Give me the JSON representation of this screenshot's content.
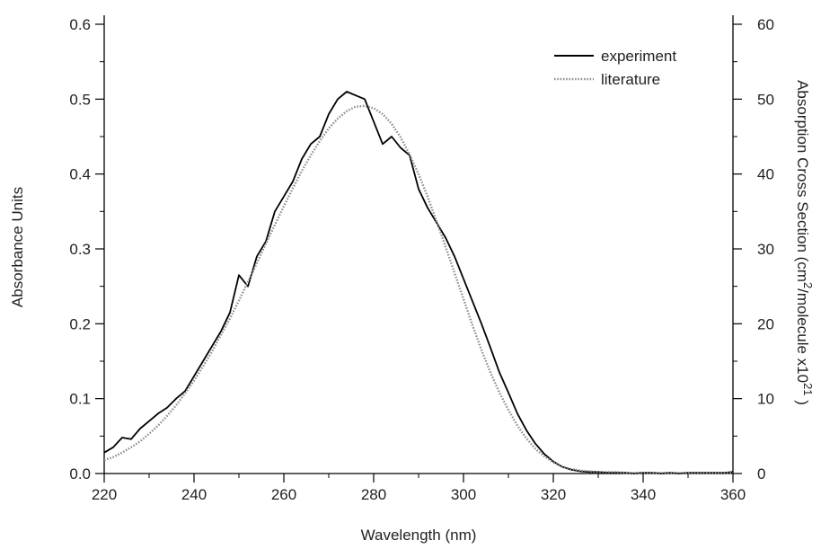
{
  "chart_data": {
    "type": "line",
    "title": "",
    "xlabel": "Wavelength (nm)",
    "ylabel_left": "Absorbance Units",
    "ylabel_right_parts": [
      "Absorption Cross Section (cm",
      "2",
      "/molecule x10",
      "21",
      " )"
    ],
    "xlim": [
      220,
      360
    ],
    "ylim_left": [
      0,
      0.6
    ],
    "ylim_right": [
      0,
      60
    ],
    "x_ticks": [
      220,
      240,
      260,
      280,
      300,
      320,
      340,
      360
    ],
    "x_tick_labels": [
      "220",
      "240",
      "260",
      "280",
      "300",
      "320",
      "340",
      "360"
    ],
    "y_left_ticks": [
      0,
      0.1,
      0.2,
      0.3,
      0.4,
      0.5,
      0.6
    ],
    "y_left_tick_labels": [
      "0.0",
      "0.1",
      "0.2",
      "0.3",
      "0.4",
      "0.5",
      "0.6"
    ],
    "y_right_ticks": [
      0,
      10,
      20,
      30,
      40,
      50,
      60
    ],
    "y_right_tick_labels": [
      "0",
      "10",
      "20",
      "30",
      "40",
      "50",
      "60"
    ],
    "grid": false,
    "legend": {
      "position": "top-right",
      "entries": [
        "experiment",
        "literature"
      ]
    },
    "series": [
      {
        "name": "experiment",
        "axis": "left",
        "color": "#000000",
        "style": "solid",
        "x": [
          220,
          222,
          224,
          226,
          228,
          230,
          232,
          234,
          236,
          238,
          240,
          242,
          244,
          246,
          248,
          250,
          252,
          254,
          256,
          258,
          260,
          262,
          264,
          266,
          268,
          270,
          272,
          274,
          276,
          278,
          280,
          282,
          284,
          286,
          288,
          290,
          292,
          294,
          296,
          298,
          300,
          302,
          304,
          306,
          308,
          310,
          312,
          314,
          316,
          318,
          320,
          322,
          324,
          326,
          328,
          330,
          332,
          334,
          336,
          338,
          340,
          342,
          344,
          346,
          348,
          350,
          352,
          354,
          356,
          358,
          360
        ],
        "y": [
          0.028,
          0.035,
          0.048,
          0.046,
          0.06,
          0.07,
          0.08,
          0.088,
          0.1,
          0.11,
          0.13,
          0.15,
          0.17,
          0.19,
          0.215,
          0.265,
          0.25,
          0.29,
          0.31,
          0.35,
          0.37,
          0.39,
          0.42,
          0.44,
          0.45,
          0.48,
          0.5,
          0.51,
          0.505,
          0.5,
          0.47,
          0.44,
          0.45,
          0.435,
          0.425,
          0.38,
          0.355,
          0.335,
          0.315,
          0.29,
          0.26,
          0.23,
          0.2,
          0.168,
          0.135,
          0.108,
          0.08,
          0.058,
          0.04,
          0.026,
          0.016,
          0.009,
          0.005,
          0.003,
          0.002,
          0.002,
          0.001,
          0.001,
          0.001,
          0.0,
          0.001,
          0.001,
          0.0,
          0.001,
          0.0,
          0.001,
          0.001,
          0.001,
          0.001,
          0.001,
          0.002
        ]
      },
      {
        "name": "literature",
        "axis": "left",
        "color": "#8a8a8a",
        "style": "dotted",
        "x": [
          220,
          222,
          224,
          226,
          228,
          230,
          232,
          234,
          236,
          238,
          240,
          242,
          244,
          246,
          248,
          250,
          252,
          254,
          256,
          258,
          260,
          262,
          264,
          266,
          268,
          270,
          272,
          274,
          276,
          278,
          280,
          282,
          284,
          286,
          288,
          290,
          292,
          294,
          296,
          298,
          300,
          302,
          304,
          306,
          308,
          310,
          312,
          314,
          316,
          318,
          320,
          322,
          324,
          326,
          328,
          330,
          332,
          334,
          336,
          338,
          340,
          345,
          350,
          355,
          360
        ],
        "y": [
          0.018,
          0.022,
          0.028,
          0.035,
          0.043,
          0.053,
          0.064,
          0.077,
          0.091,
          0.107,
          0.124,
          0.143,
          0.163,
          0.185,
          0.207,
          0.231,
          0.256,
          0.281,
          0.307,
          0.332,
          0.357,
          0.381,
          0.404,
          0.425,
          0.444,
          0.461,
          0.474,
          0.484,
          0.49,
          0.491,
          0.488,
          0.48,
          0.467,
          0.449,
          0.426,
          0.4,
          0.37,
          0.337,
          0.303,
          0.268,
          0.233,
          0.198,
          0.165,
          0.135,
          0.108,
          0.085,
          0.064,
          0.047,
          0.033,
          0.023,
          0.015,
          0.009,
          0.006,
          0.004,
          0.003,
          0.002,
          0.002,
          0.002,
          0.001,
          0.001,
          0.001,
          0.001,
          0.001,
          0.001,
          0.001
        ]
      }
    ]
  }
}
